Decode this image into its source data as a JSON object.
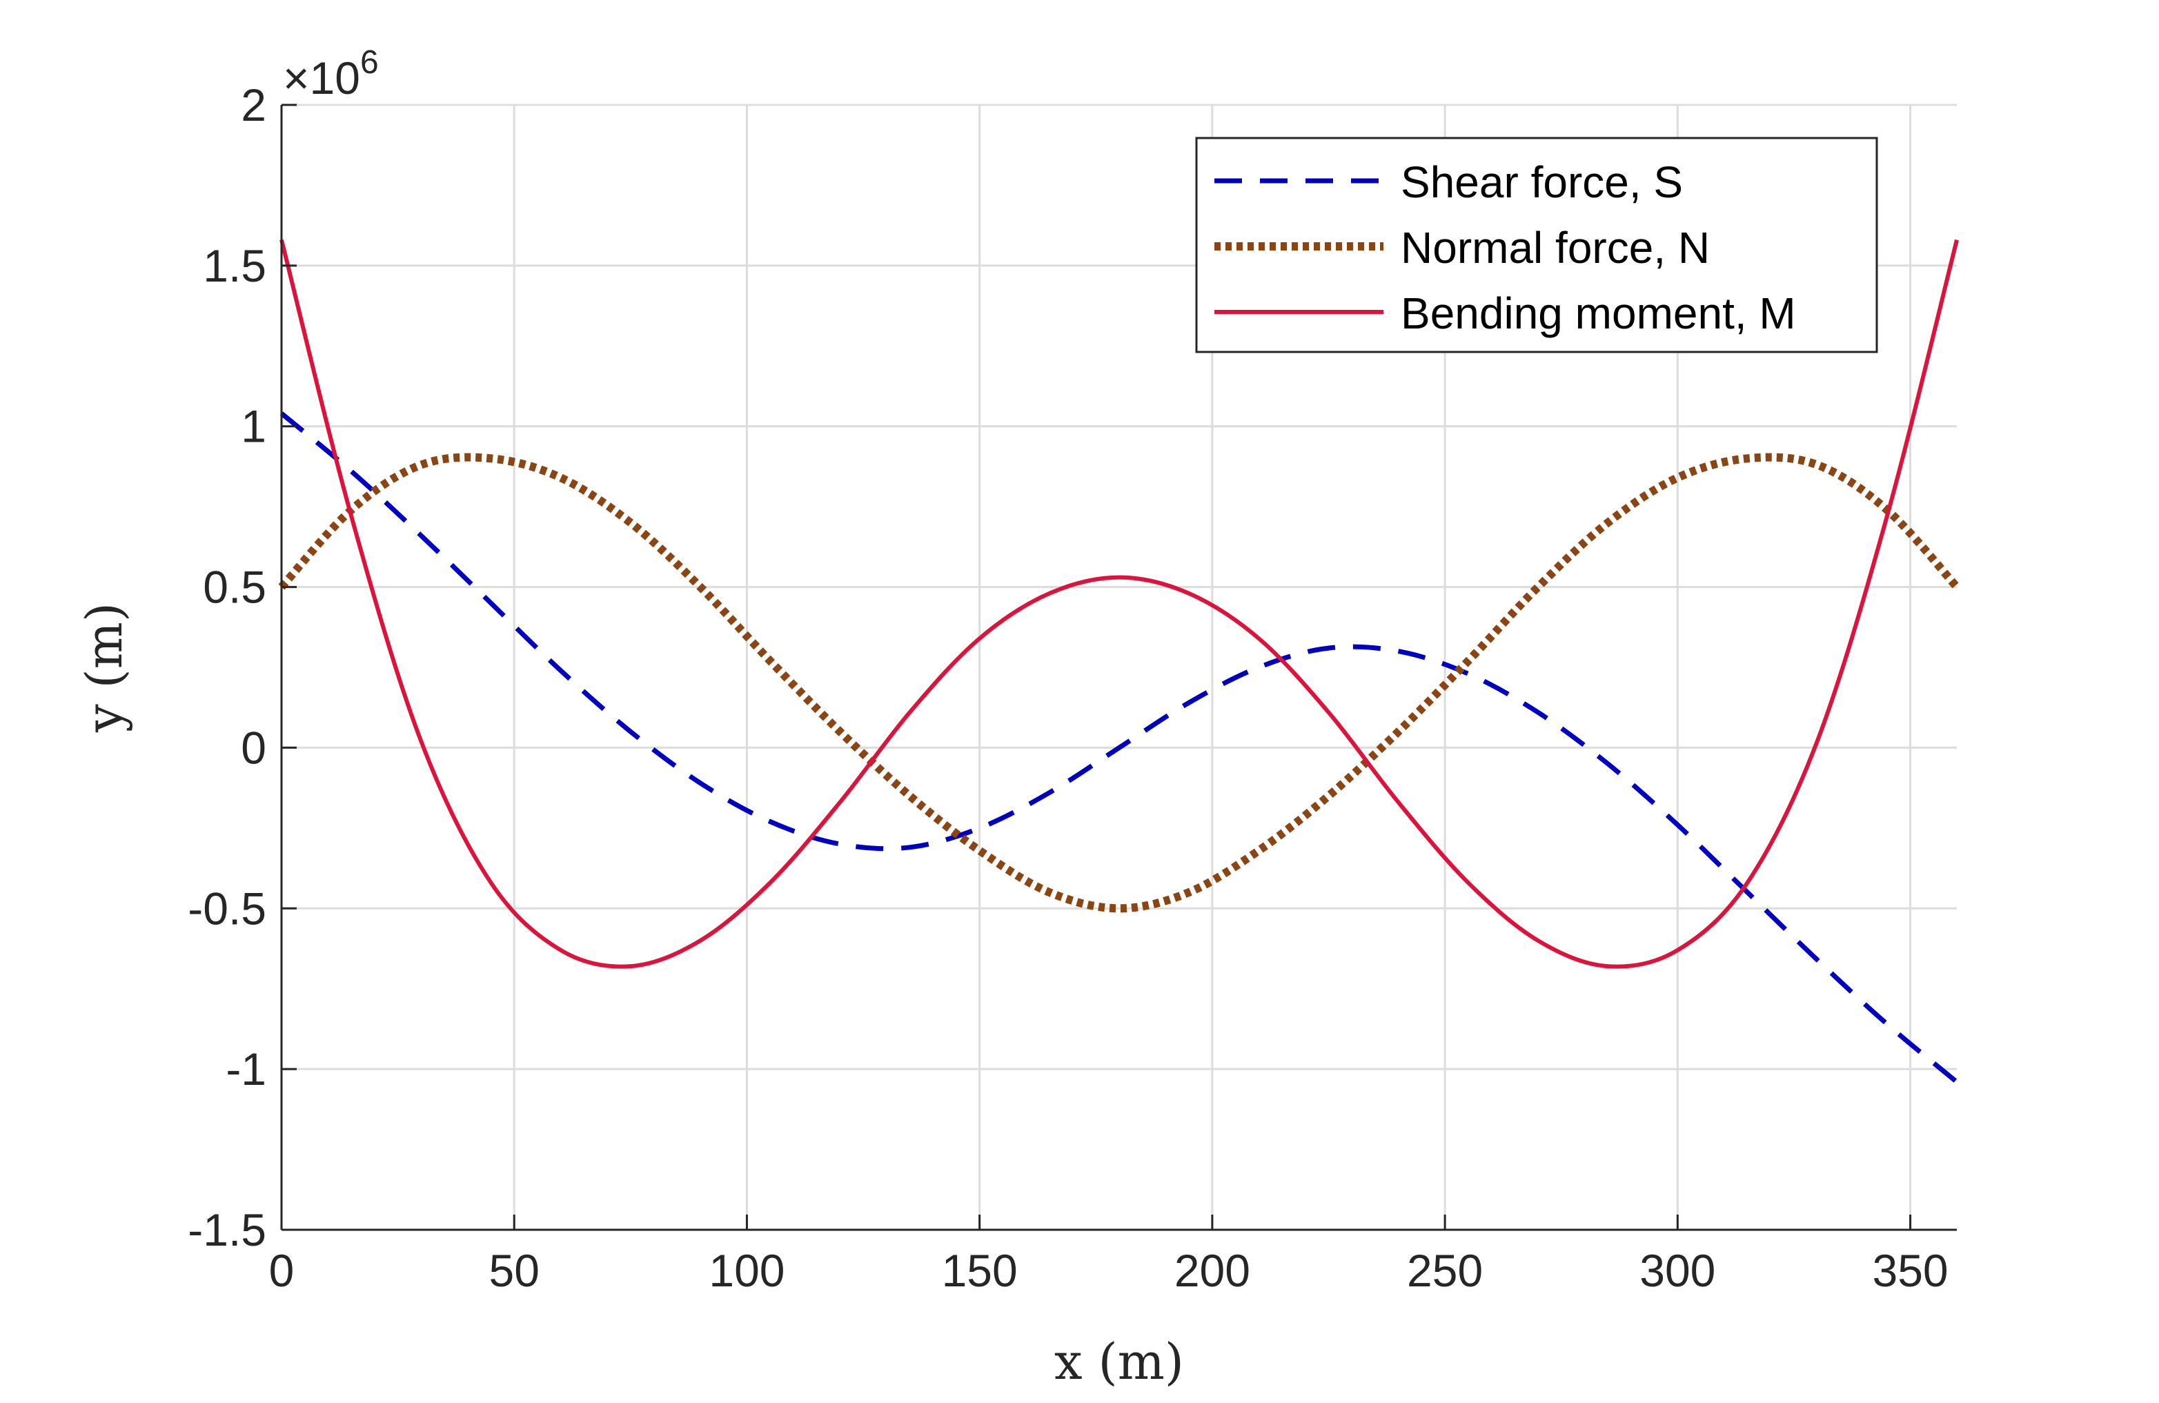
{
  "chart_data": {
    "type": "line",
    "xlabel": "x (m)",
    "ylabel": "y (m)",
    "exponent_label": "×10",
    "exponent_power": "6",
    "xlim": [
      0,
      360
    ],
    "ylim": [
      -1.5,
      2
    ],
    "x_ticks": [
      0,
      50,
      100,
      150,
      200,
      250,
      300,
      350
    ],
    "x_tick_labels": [
      "0",
      "50",
      "100",
      "150",
      "200",
      "250",
      "300",
      "350"
    ],
    "y_ticks": [
      -1.5,
      -1,
      -0.5,
      0,
      0.5,
      1,
      1.5,
      2
    ],
    "y_tick_labels": [
      "-1.5",
      "-1",
      "-0.5",
      "0",
      "0.5",
      "1",
      "1.5",
      "2"
    ],
    "y_scale": 1000000,
    "grid": true,
    "legend_position": "top-right",
    "series": [
      {
        "name": "Shear force, S",
        "color": "#0000C0",
        "style": "dashed",
        "x": [
          0,
          15,
          30,
          45,
          60,
          75,
          90,
          105,
          120,
          135,
          150,
          165,
          180,
          195,
          210,
          225,
          240,
          255,
          270,
          285,
          300,
          315,
          330,
          345,
          360
        ],
        "values": [
          1.04,
          0.86,
          0.66,
          0.45,
          0.24,
          0.05,
          -0.11,
          -0.23,
          -0.3,
          -0.31,
          -0.25,
          -0.14,
          0.0,
          0.14,
          0.25,
          0.31,
          0.3,
          0.23,
          0.11,
          -0.05,
          -0.24,
          -0.45,
          -0.66,
          -0.86,
          -1.04
        ]
      },
      {
        "name": "Normal force, N",
        "color": "#8B4513",
        "style": "dotted",
        "x": [
          0,
          15,
          30,
          45,
          60,
          75,
          90,
          105,
          120,
          135,
          150,
          165,
          180,
          195,
          210,
          225,
          240,
          255,
          270,
          285,
          300,
          315,
          330,
          345,
          360
        ],
        "values": [
          0.5,
          0.74,
          0.88,
          0.9,
          0.84,
          0.7,
          0.5,
          0.27,
          0.05,
          -0.15,
          -0.32,
          -0.45,
          -0.5,
          -0.45,
          -0.32,
          -0.15,
          0.05,
          0.27,
          0.5,
          0.7,
          0.84,
          0.9,
          0.88,
          0.74,
          0.5
        ]
      },
      {
        "name": "Bending moment, M",
        "color": "#DC143C",
        "style": "solid",
        "x": [
          0,
          15,
          30,
          45,
          60,
          75,
          90,
          105,
          120,
          135,
          150,
          165,
          180,
          195,
          210,
          225,
          240,
          255,
          270,
          285,
          300,
          315,
          330,
          345,
          360
        ],
        "values": [
          1.58,
          0.72,
          0.02,
          -0.42,
          -0.63,
          -0.68,
          -0.6,
          -0.42,
          -0.17,
          0.11,
          0.34,
          0.48,
          0.53,
          0.48,
          0.34,
          0.11,
          -0.17,
          -0.42,
          -0.6,
          -0.68,
          -0.63,
          -0.42,
          0.02,
          0.72,
          1.58
        ]
      }
    ]
  }
}
